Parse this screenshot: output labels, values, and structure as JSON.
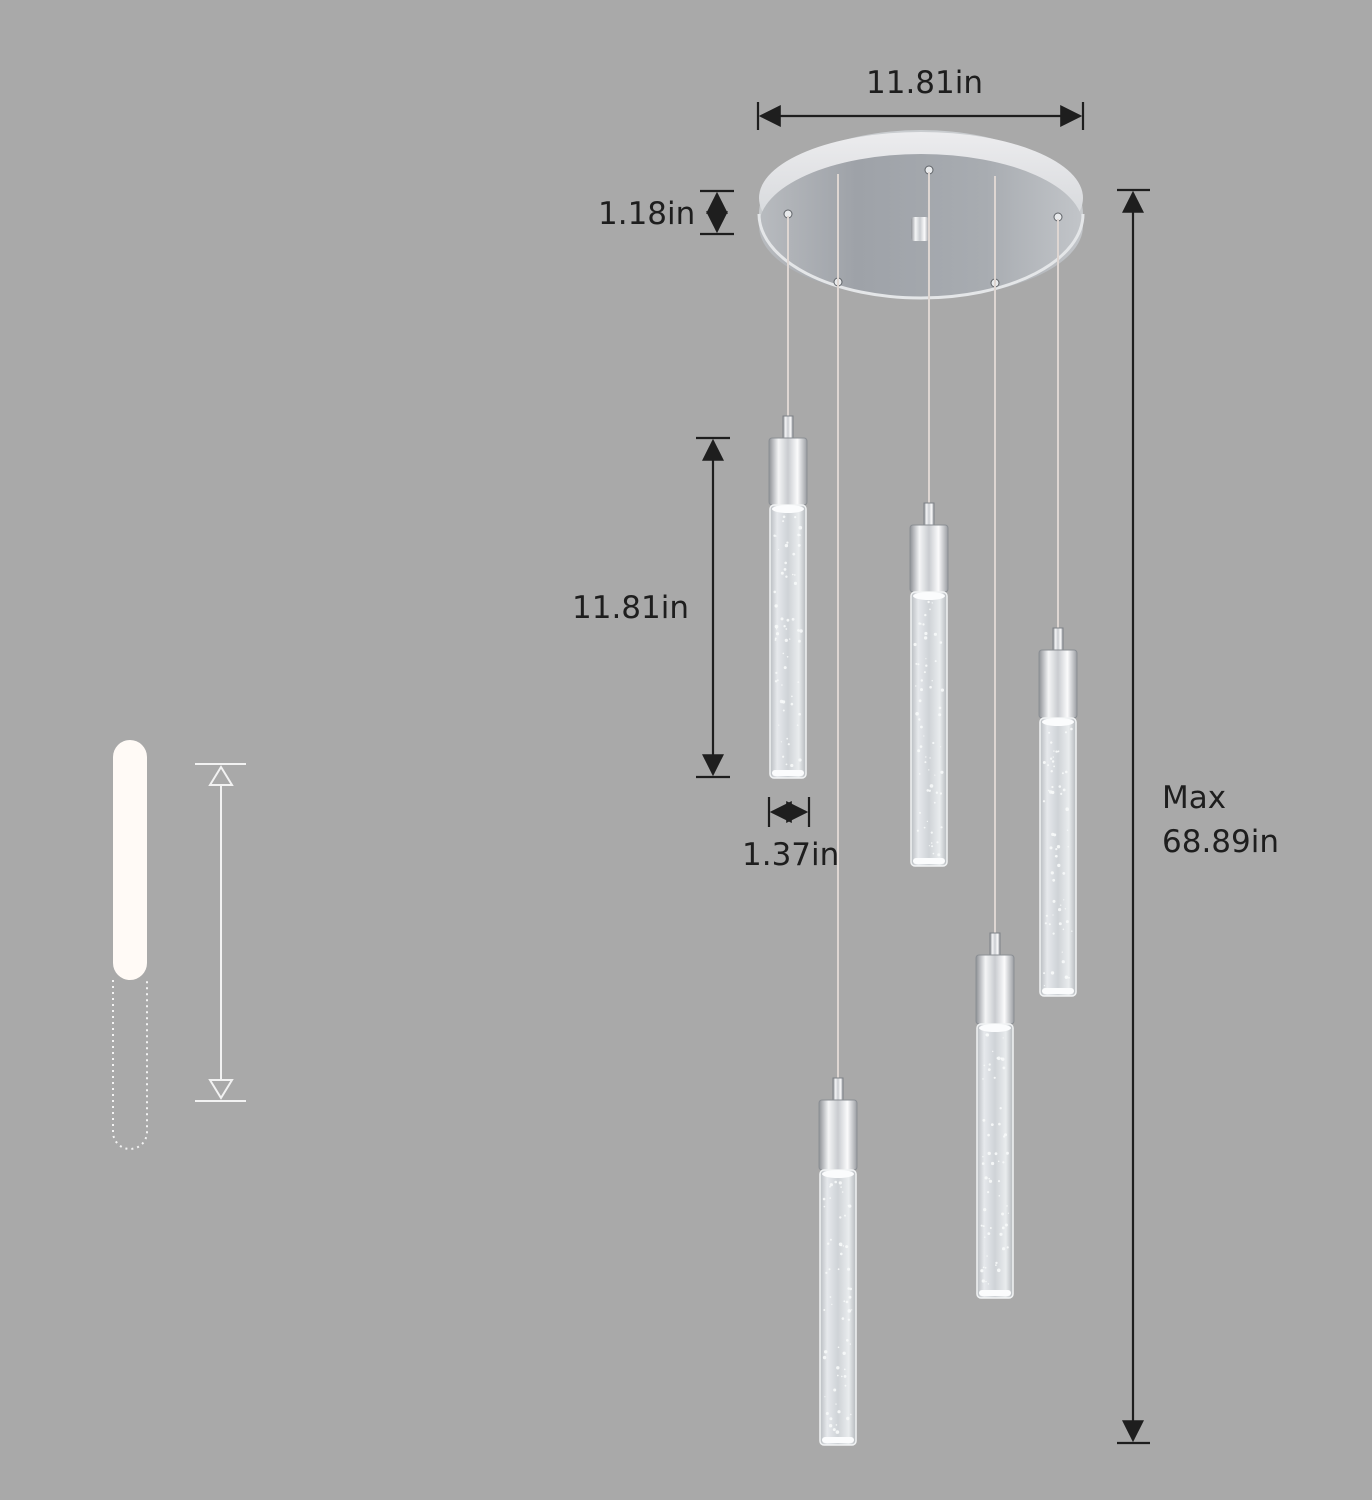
{
  "dimensions": {
    "canopy_diameter": "11.81in",
    "canopy_height": "1.18in",
    "pendant_length": "11.81in",
    "pendant_diameter": "1.37in",
    "max_height_line1": "Max",
    "max_height_line2": "68.89in"
  },
  "colors": {
    "background": "#a9a9a9",
    "dimension_line": "#1e1e1e",
    "chrome": "#d4d6d9",
    "glass": "#dfe3e6",
    "glow": "#fffaf6",
    "adjust_symbol": "#f2f2f2"
  },
  "icons": {
    "adjustable_length_symbol": "adjustable-length-icon"
  }
}
